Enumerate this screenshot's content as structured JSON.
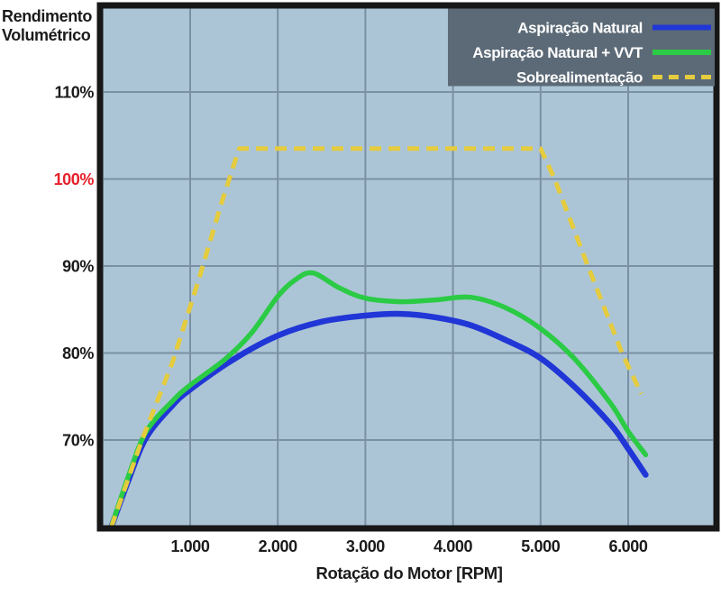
{
  "chart_data": {
    "type": "line",
    "title": "",
    "xlabel": "Rotação do Motor [RPM]",
    "ylabel": "Rendimento Volumétrico",
    "ylabel_lines": [
      "Rendimento",
      "Volumétrico"
    ],
    "xlim": [
      0,
      7000
    ],
    "ylim": [
      60,
      120
    ],
    "grid": true,
    "legend_position": "top-right",
    "colors": {
      "plot_bg": "#abc5d6",
      "grid": "#7b90a4",
      "frame": "#171717",
      "legend_bg": "#5c6a77",
      "tick_default": "#1b1b1b",
      "tick_highlight": "#e6212b"
    },
    "x_ticks": [
      {
        "rpm": 1000,
        "label": "1.000"
      },
      {
        "rpm": 2000,
        "label": "2.000"
      },
      {
        "rpm": 3000,
        "label": "3.000"
      },
      {
        "rpm": 4000,
        "label": "4.000"
      },
      {
        "rpm": 5000,
        "label": "5.000"
      },
      {
        "rpm": 6000,
        "label": "6.000"
      }
    ],
    "y_ticks": [
      {
        "pct": 110,
        "label": "110%",
        "color": "#1b1b1b"
      },
      {
        "pct": 100,
        "label": "100%",
        "color": "#e6212b"
      },
      {
        "pct": 90,
        "label": "90%",
        "color": "#1b1b1b"
      },
      {
        "pct": 80,
        "label": "80%",
        "color": "#1b1b1b"
      },
      {
        "pct": 70,
        "label": "70%",
        "color": "#1b1b1b"
      }
    ],
    "series": [
      {
        "name": "Aspiração Natural",
        "color": "#2136d6",
        "dash": null,
        "width": 6.5,
        "smooth": true,
        "points": [
          [
            100,
            60
          ],
          [
            300,
            65.5
          ],
          [
            500,
            70.3
          ],
          [
            800,
            74
          ],
          [
            1000,
            75.8
          ],
          [
            1500,
            79.3
          ],
          [
            2000,
            82
          ],
          [
            2500,
            83.6
          ],
          [
            3000,
            84.3
          ],
          [
            3400,
            84.5
          ],
          [
            3800,
            84.1
          ],
          [
            4200,
            83.2
          ],
          [
            4600,
            81.5
          ],
          [
            5000,
            79.4
          ],
          [
            5400,
            76
          ],
          [
            5800,
            71.8
          ],
          [
            6000,
            69
          ],
          [
            6200,
            66
          ]
        ]
      },
      {
        "name": "Aspiração Natural + VVT",
        "color": "#2bcb45",
        "dash": null,
        "width": 5.5,
        "smooth": true,
        "points": [
          [
            100,
            60
          ],
          [
            300,
            66
          ],
          [
            500,
            71
          ],
          [
            800,
            74.5
          ],
          [
            1000,
            76.3
          ],
          [
            1400,
            79.3
          ],
          [
            1700,
            82.3
          ],
          [
            2000,
            86.5
          ],
          [
            2200,
            88.4
          ],
          [
            2400,
            89.2
          ],
          [
            2700,
            87.5
          ],
          [
            3000,
            86.3
          ],
          [
            3400,
            85.9
          ],
          [
            3800,
            86.1
          ],
          [
            4200,
            86.4
          ],
          [
            4600,
            85.2
          ],
          [
            5000,
            82.8
          ],
          [
            5400,
            79.2
          ],
          [
            5800,
            74.2
          ],
          [
            6000,
            71
          ],
          [
            6200,
            68.3
          ]
        ]
      },
      {
        "name": "Sobrealimentação",
        "color": "#e5cc3e",
        "dash": "13,8",
        "width": 5,
        "smooth": false,
        "points": [
          [
            100,
            60
          ],
          [
            450,
            70
          ],
          [
            800,
            79
          ],
          [
            1100,
            88.5
          ],
          [
            1350,
            97
          ],
          [
            1560,
            103.5
          ],
          [
            5000,
            103.5
          ],
          [
            5160,
            100
          ],
          [
            5540,
            90
          ],
          [
            5930,
            80
          ],
          [
            6150,
            75.3
          ]
        ]
      }
    ]
  }
}
